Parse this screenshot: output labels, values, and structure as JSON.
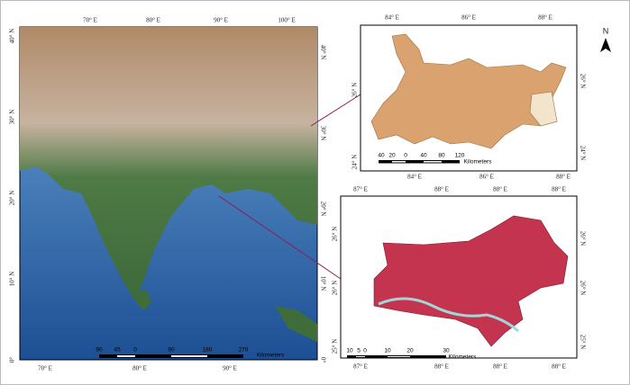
{
  "india_map": {
    "top_ticks": [
      "70° E",
      "80° E",
      "90° E",
      "100° E"
    ],
    "bottom_ticks": [
      "70° E",
      "80° E",
      "90° E"
    ],
    "left_ticks": [
      "40° N",
      "30° N",
      "20° N",
      "10° N",
      "0°"
    ],
    "right_ticks": [
      "40° N",
      "30° N",
      "20° N",
      "10° N",
      "0°"
    ],
    "scale_labels": [
      "90",
      "45",
      "0",
      "90",
      "180",
      "270"
    ],
    "scale_unit": "Kilometers"
  },
  "state_map": {
    "top_ticks": [
      "84° E",
      "86° E",
      "88° E"
    ],
    "bottom_ticks": [
      "84° E",
      "86° E",
      "88° E"
    ],
    "left_ticks": [
      "26° N",
      "24° N"
    ],
    "right_ticks": [
      "26° N",
      "24° N"
    ],
    "scale_labels": [
      "40",
      "20",
      "0",
      "40",
      "80",
      "120"
    ],
    "scale_unit": "Kilometers"
  },
  "region_map": {
    "top_ticks": [
      "87° E",
      "88° E",
      "88° E",
      "88° E"
    ],
    "bottom_ticks": [
      "87° E",
      "88° E",
      "88° E",
      "88° E"
    ],
    "left_ticks": [
      "26° N",
      "26° N",
      "25° N"
    ],
    "right_ticks": [
      "26° N",
      "26° N",
      "25° N"
    ],
    "scale_labels": [
      "10",
      "5",
      "0",
      "10",
      "20",
      "30"
    ],
    "scale_unit": "Kilometers"
  },
  "north_arrow": {
    "label": "N"
  }
}
